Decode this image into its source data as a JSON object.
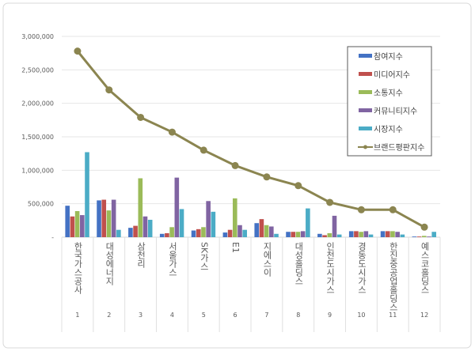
{
  "chart_data": {
    "type": "bar+line",
    "categories": [
      "한국가스공사",
      "대성에너지",
      "삼천리",
      "서울가스",
      "SK가스",
      "E1",
      "지에스이",
      "대성홀딩스",
      "인천도시가스",
      "경동도시가스",
      "한진중공업홀딩스",
      "예스코홀딩스"
    ],
    "category_numbers": [
      "1",
      "2",
      "3",
      "4",
      "5",
      "6",
      "7",
      "8",
      "9",
      "10",
      "11",
      "12"
    ],
    "ylim": [
      0,
      3000000
    ],
    "yticks": [
      "-",
      "500,000",
      "1,000,000",
      "1,500,000",
      "2,000,000",
      "2,500,000",
      "3,000,000"
    ],
    "grid": true,
    "legend": "top-right",
    "series": [
      {
        "name": "참여지수",
        "type": "bar",
        "color": "#4472C4",
        "values": [
          470000,
          550000,
          140000,
          50000,
          100000,
          70000,
          210000,
          80000,
          50000,
          90000,
          90000,
          10000
        ]
      },
      {
        "name": "미디어지수",
        "type": "bar",
        "color": "#C0504D",
        "values": [
          310000,
          560000,
          170000,
          60000,
          120000,
          110000,
          270000,
          80000,
          30000,
          90000,
          90000,
          10000
        ]
      },
      {
        "name": "소통지수",
        "type": "bar",
        "color": "#9BBB59",
        "values": [
          390000,
          400000,
          880000,
          150000,
          150000,
          580000,
          180000,
          80000,
          60000,
          80000,
          90000,
          20000
        ]
      },
      {
        "name": "커뮤니티지수",
        "type": "bar",
        "color": "#8064A2",
        "values": [
          330000,
          560000,
          310000,
          890000,
          540000,
          180000,
          160000,
          90000,
          320000,
          90000,
          80000,
          10000
        ]
      },
      {
        "name": "시장지수",
        "type": "bar",
        "color": "#4BACC6",
        "values": [
          1270000,
          110000,
          260000,
          420000,
          380000,
          110000,
          50000,
          430000,
          40000,
          40000,
          40000,
          80000
        ]
      },
      {
        "name": "브랜드평판지수",
        "type": "line",
        "color": "#8B8550",
        "values": [
          2780000,
          2200000,
          1790000,
          1570000,
          1300000,
          1070000,
          900000,
          770000,
          520000,
          410000,
          410000,
          150000
        ]
      }
    ]
  }
}
